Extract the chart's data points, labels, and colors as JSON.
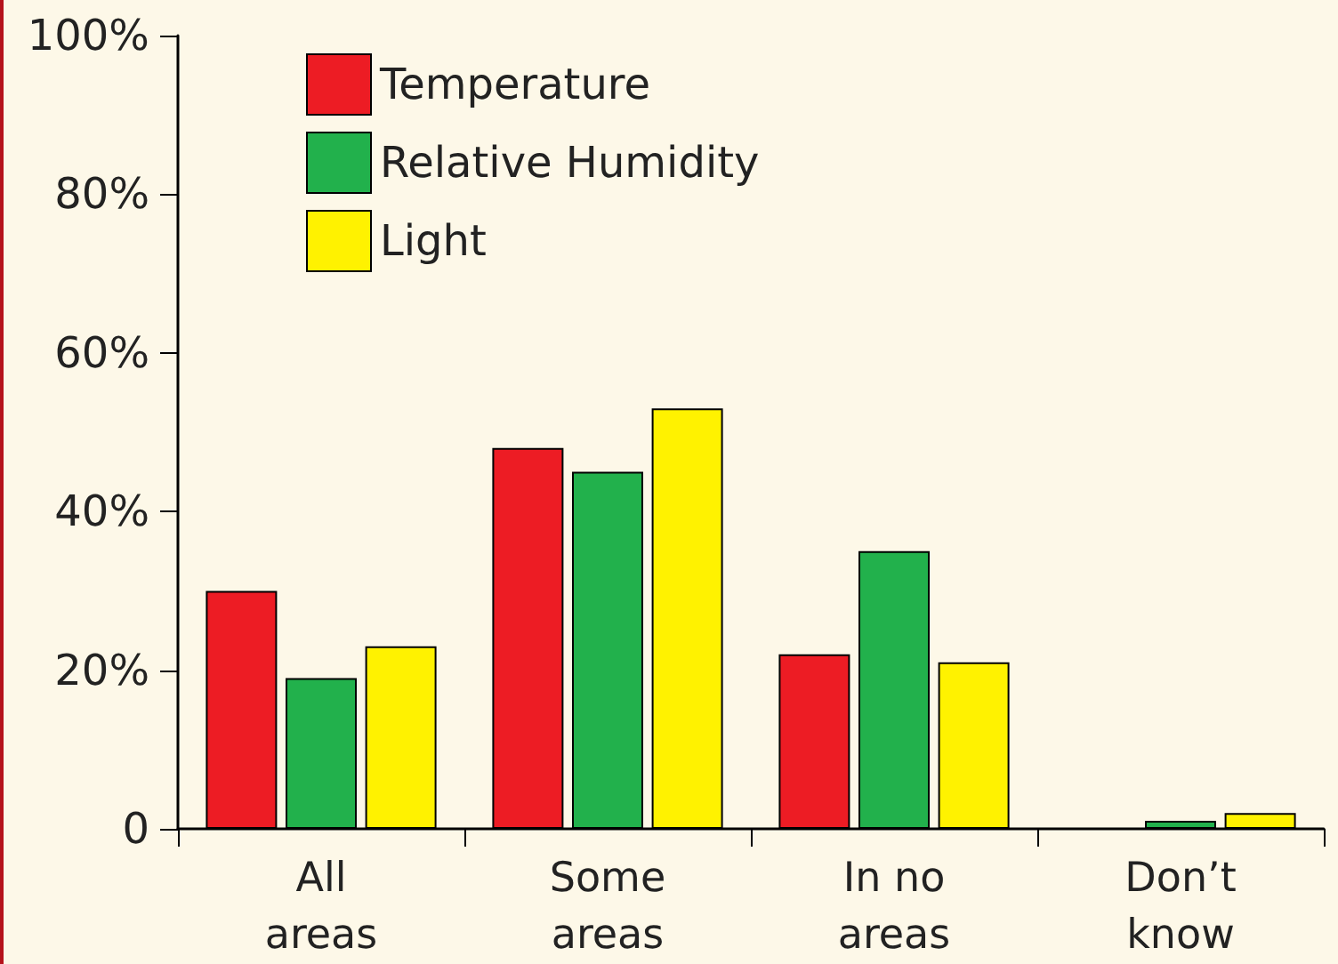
{
  "chart_data": {
    "type": "bar",
    "categories": [
      "All\nareas",
      "Some\nareas",
      "In no\nareas",
      "Don’t\nknow"
    ],
    "series": [
      {
        "name": "Temperature",
        "color": "#ed1c24",
        "values": [
          30,
          48,
          22,
          null
        ]
      },
      {
        "name": "Relative Humidity",
        "color": "#22b14c",
        "values": [
          19,
          45,
          35,
          1
        ]
      },
      {
        "name": "Light",
        "color": "#fff200",
        "values": [
          23,
          53,
          21,
          2
        ]
      }
    ],
    "ylim": [
      0,
      100
    ],
    "yticks": [
      0,
      {
        "value": 20,
        "label": "20%"
      },
      {
        "value": 40,
        "label": "40%"
      },
      {
        "value": 60,
        "label": "60%"
      },
      {
        "value": 80,
        "label": "80%"
      },
      {
        "value": 100,
        "label": "100%"
      }
    ],
    "grid": false,
    "legend": "top left"
  }
}
